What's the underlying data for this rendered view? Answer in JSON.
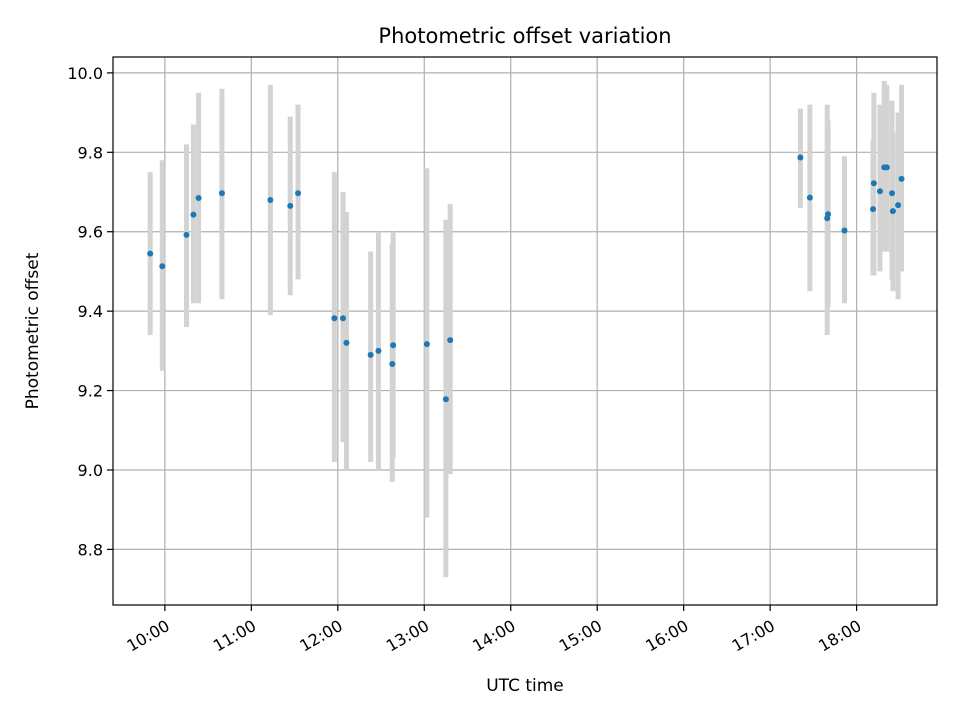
{
  "chart_data": {
    "type": "scatter",
    "title": "Photometric offset variation",
    "xlabel": "UTC time",
    "ylabel": "Photometric offset",
    "x_unit": "hours UTC",
    "xlim": [
      9.4,
      18.93
    ],
    "ylim": [
      8.66,
      10.04
    ],
    "x_ticks": [
      {
        "value": 10,
        "label": "10:00"
      },
      {
        "value": 11,
        "label": "11:00"
      },
      {
        "value": 12,
        "label": "12:00"
      },
      {
        "value": 13,
        "label": "13:00"
      },
      {
        "value": 14,
        "label": "14:00"
      },
      {
        "value": 15,
        "label": "15:00"
      },
      {
        "value": 16,
        "label": "16:00"
      },
      {
        "value": 17,
        "label": "17:00"
      },
      {
        "value": 18,
        "label": "18:00"
      }
    ],
    "y_ticks": [
      {
        "value": 8.8,
        "label": "8.8"
      },
      {
        "value": 9.0,
        "label": "9.0"
      },
      {
        "value": 9.2,
        "label": "9.2"
      },
      {
        "value": 9.4,
        "label": "9.4"
      },
      {
        "value": 9.6,
        "label": "9.6"
      },
      {
        "value": 9.8,
        "label": "9.8"
      },
      {
        "value": 10.0,
        "label": "10.0"
      }
    ],
    "grid": true,
    "marker_color": "#1f77b4",
    "errorbar_color": "#d3d3d3",
    "points": [
      {
        "x": 9.83,
        "y": 9.545,
        "lo": 9.34,
        "hi": 9.75
      },
      {
        "x": 9.97,
        "y": 9.513,
        "lo": 9.25,
        "hi": 9.78
      },
      {
        "x": 10.25,
        "y": 9.592,
        "lo": 9.36,
        "hi": 9.82
      },
      {
        "x": 10.33,
        "y": 9.643,
        "lo": 9.42,
        "hi": 9.87
      },
      {
        "x": 10.39,
        "y": 9.685,
        "lo": 9.42,
        "hi": 9.95
      },
      {
        "x": 10.66,
        "y": 9.697,
        "lo": 9.43,
        "hi": 9.96
      },
      {
        "x": 11.22,
        "y": 9.68,
        "lo": 9.39,
        "hi": 9.97
      },
      {
        "x": 11.45,
        "y": 9.665,
        "lo": 9.44,
        "hi": 9.89
      },
      {
        "x": 11.54,
        "y": 9.697,
        "lo": 9.48,
        "hi": 9.92
      },
      {
        "x": 11.96,
        "y": 9.382,
        "lo": 9.02,
        "hi": 9.75
      },
      {
        "x": 12.06,
        "y": 9.382,
        "lo": 9.07,
        "hi": 9.7
      },
      {
        "x": 12.1,
        "y": 9.32,
        "lo": 9.0,
        "hi": 9.65
      },
      {
        "x": 12.38,
        "y": 9.29,
        "lo": 9.02,
        "hi": 9.55
      },
      {
        "x": 12.47,
        "y": 9.3,
        "lo": 9.0,
        "hi": 9.6
      },
      {
        "x": 12.63,
        "y": 9.267,
        "lo": 8.97,
        "hi": 9.57
      },
      {
        "x": 12.64,
        "y": 9.314,
        "lo": 9.03,
        "hi": 9.6
      },
      {
        "x": 13.03,
        "y": 9.317,
        "lo": 8.88,
        "hi": 9.76
      },
      {
        "x": 13.25,
        "y": 9.178,
        "lo": 8.73,
        "hi": 9.63
      },
      {
        "x": 13.3,
        "y": 9.327,
        "lo": 8.99,
        "hi": 9.67
      },
      {
        "x": 17.35,
        "y": 9.787,
        "lo": 9.66,
        "hi": 9.91
      },
      {
        "x": 17.46,
        "y": 9.686,
        "lo": 9.45,
        "hi": 9.92
      },
      {
        "x": 17.66,
        "y": 9.634,
        "lo": 9.34,
        "hi": 9.92
      },
      {
        "x": 17.67,
        "y": 9.644,
        "lo": 9.41,
        "hi": 9.88
      },
      {
        "x": 17.86,
        "y": 9.603,
        "lo": 9.42,
        "hi": 9.79
      },
      {
        "x": 18.2,
        "y": 9.722,
        "lo": 9.49,
        "hi": 9.95
      },
      {
        "x": 18.19,
        "y": 9.657,
        "lo": 9.49,
        "hi": 9.83
      },
      {
        "x": 18.27,
        "y": 9.702,
        "lo": 9.5,
        "hi": 9.92
      },
      {
        "x": 18.32,
        "y": 9.762,
        "lo": 9.55,
        "hi": 9.98
      },
      {
        "x": 18.35,
        "y": 9.762,
        "lo": 9.55,
        "hi": 9.97
      },
      {
        "x": 18.42,
        "y": 9.652,
        "lo": 9.45,
        "hi": 9.85
      },
      {
        "x": 18.41,
        "y": 9.697,
        "lo": 9.48,
        "hi": 9.93
      },
      {
        "x": 18.48,
        "y": 9.667,
        "lo": 9.43,
        "hi": 9.9
      },
      {
        "x": 18.52,
        "y": 9.733,
        "lo": 9.5,
        "hi": 9.97
      }
    ]
  }
}
